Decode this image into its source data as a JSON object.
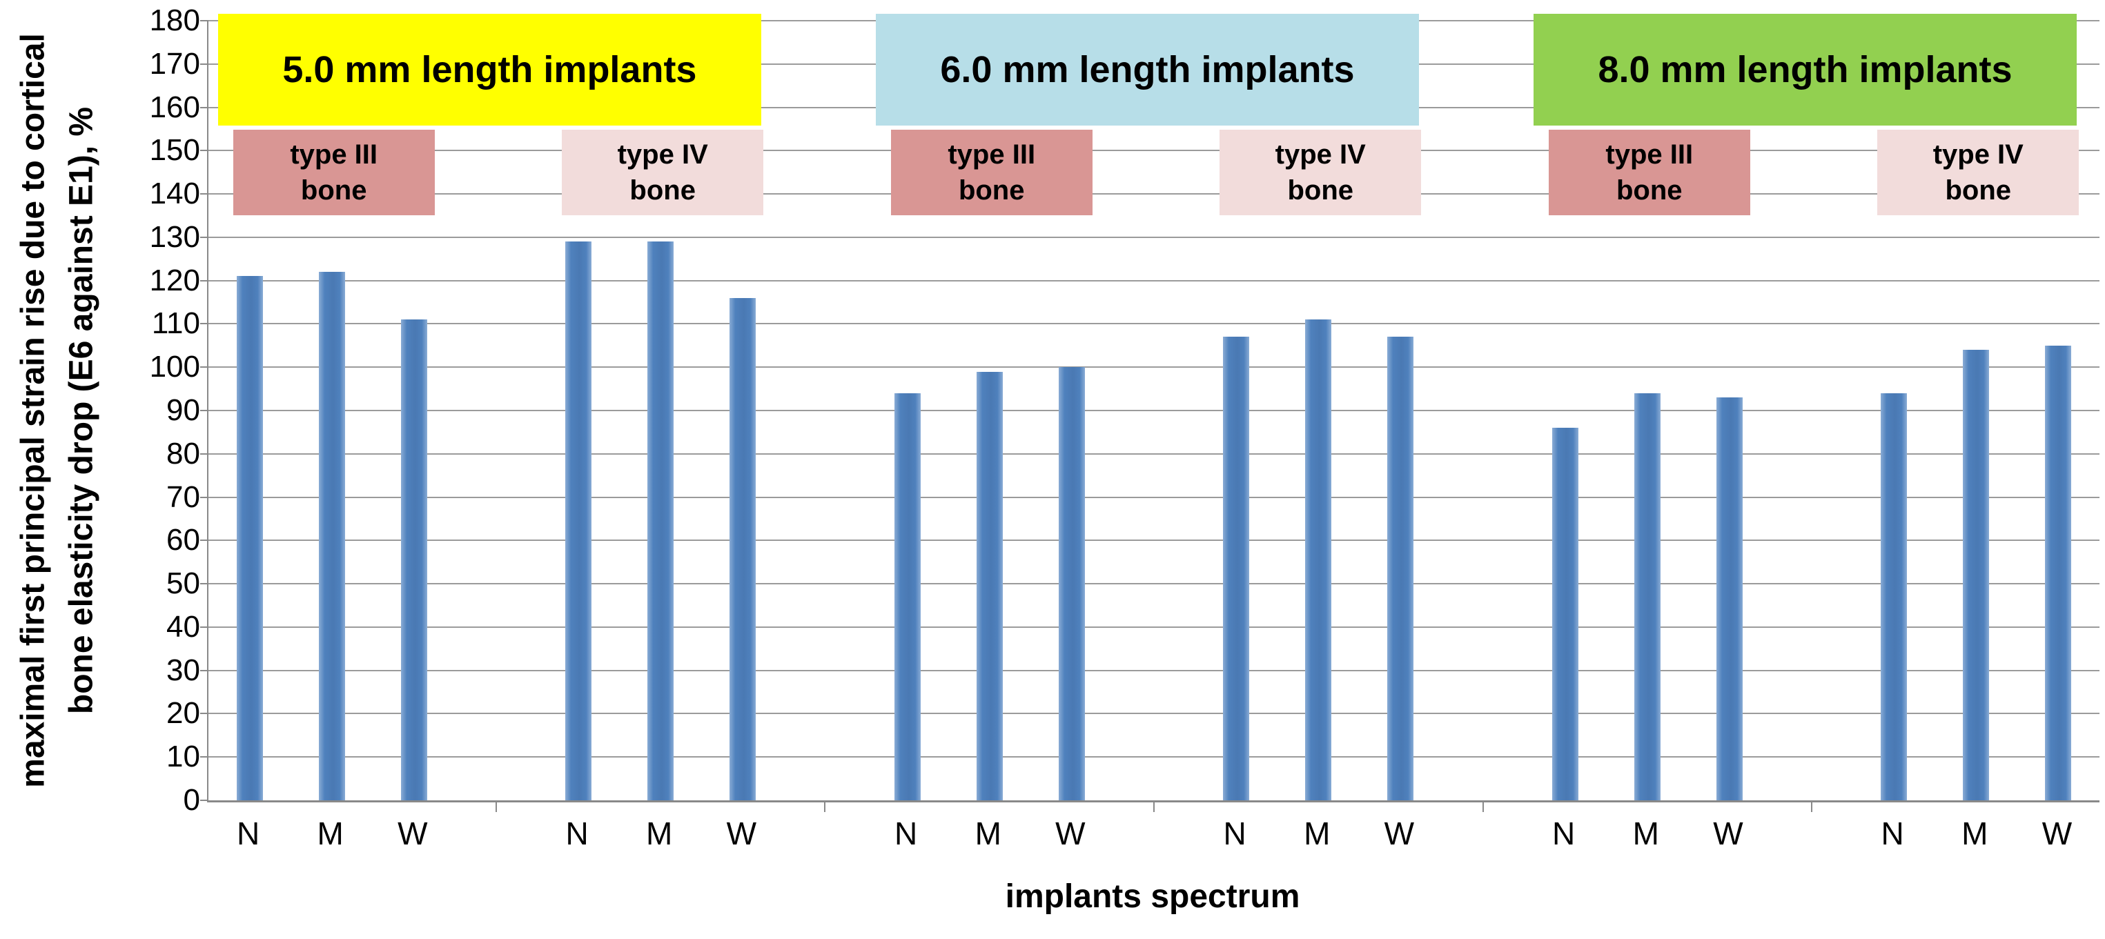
{
  "chart_data": {
    "type": "bar",
    "ylabel_line1": "maximal first principal strain rise due to cortical",
    "ylabel_line2": "bone elasticity drop (E6 against E1), %",
    "xlabel": "implants spectrum",
    "ylim": [
      0,
      180
    ],
    "ytick_step": 10,
    "grid": true,
    "legend_position": "none",
    "bar_color": "#4f81bd",
    "gridline_color": "#9b9b9b",
    "axis_color": "#898989",
    "categories": [
      "N",
      "M",
      "W"
    ],
    "groups": [
      {
        "label": "5.0 mm length implants",
        "banner_color": "#ffff00",
        "subgroups": [
          {
            "label": "type III bone",
            "box_color": "#d99694",
            "values": [
              121,
              122,
              111
            ]
          },
          {
            "label": "type IV bone",
            "box_color": "#f2dcdb",
            "values": [
              129,
              129,
              116
            ]
          }
        ]
      },
      {
        "label": "6.0 mm length implants",
        "banner_color": "#b7dee8",
        "subgroups": [
          {
            "label": "type III bone",
            "box_color": "#d99694",
            "values": [
              94,
              99,
              100
            ]
          },
          {
            "label": "type IV bone",
            "box_color": "#f2dcdb",
            "values": [
              107,
              111,
              107
            ]
          }
        ]
      },
      {
        "label": "8.0 mm length implants",
        "banner_color": "#92d050",
        "subgroups": [
          {
            "label": "type III bone",
            "box_color": "#d99694",
            "values": [
              86,
              94,
              93
            ]
          },
          {
            "label": "type IV bone",
            "box_color": "#f2dcdb",
            "values": [
              94,
              104,
              105
            ]
          }
        ]
      }
    ]
  }
}
